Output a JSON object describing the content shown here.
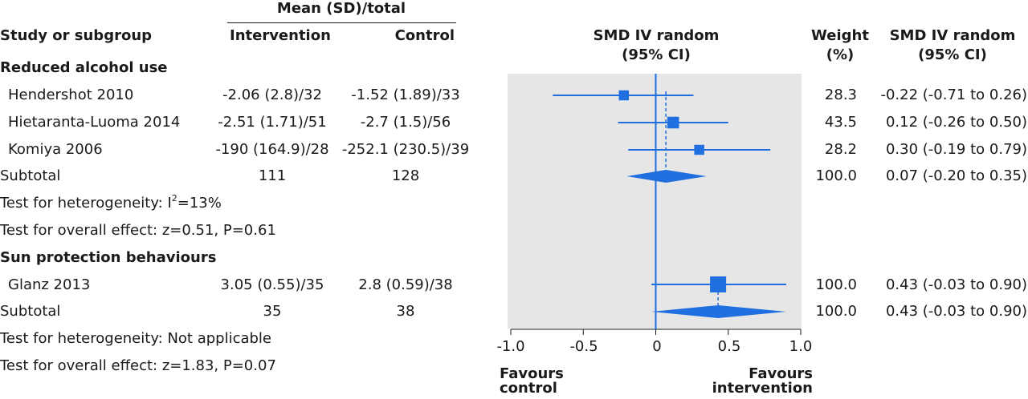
{
  "header": {
    "group_header": "Mean (SD)/total",
    "study_col": "Study or subgroup",
    "intervention_col": "Intervention",
    "control_col": "Control",
    "plot_col_line1": "SMD IV random",
    "plot_col_line2": "(95% CI)",
    "weight_col_line1": "Weight",
    "weight_col_line2": "(%)",
    "smd_col_line1": "SMD IV random",
    "smd_col_line2": "(95% CI)"
  },
  "groups": [
    {
      "title": "Reduced alcohol use",
      "studies": [
        {
          "name": "Hendershot 2010",
          "intervention": "-2.06 (2.8)/32",
          "control": "-1.52 (1.89)/33",
          "weight": "28.3",
          "ci_text": "-0.22 (-0.71 to 0.26)"
        },
        {
          "name": "Hietaranta-Luoma 2014",
          "intervention": "-2.51 (1.71)/51",
          "control": "-2.7 (1.5)/56",
          "weight": "43.5",
          "ci_text": "0.12 (-0.26 to 0.50)"
        },
        {
          "name": "Komiya 2006",
          "intervention": "-190 (164.9)/28",
          "control": "-252.1 (230.5)/39",
          "weight": "28.2",
          "ci_text": "0.30 (-0.19 to 0.79)"
        }
      ],
      "subtotal": {
        "label": "Subtotal",
        "intervention": "111",
        "control": "128",
        "weight": "100.0",
        "ci_text": "0.07 (-0.20 to 0.35)"
      },
      "heterogeneity": {
        "prefix": "Test for heterogeneity: I",
        "sup": "2",
        "suffix": "=13%"
      },
      "overall": "Test for overall effect: z=0.51, P=0.61"
    },
    {
      "title": "Sun protection behaviours",
      "studies": [
        {
          "name": "Glanz 2013",
          "intervention": "3.05 (0.55)/35",
          "control": "2.8 (0.59)/38",
          "weight": "100.0",
          "ci_text": "0.43 (-0.03 to 0.90)"
        }
      ],
      "subtotal": {
        "label": "Subtotal",
        "intervention": "35",
        "control": "38",
        "weight": "100.0",
        "ci_text": "0.43 (-0.03 to 0.90)"
      },
      "heterogeneity": "Test for heterogeneity: Not applicable",
      "overall": "Test for overall effect: z=1.83, P=0.07"
    }
  ],
  "axis": {
    "ticks": [
      "-1.0",
      "-0.5",
      "0",
      "0.5",
      "1.0"
    ],
    "favours_left_line1": "Favours",
    "favours_left_line2": "control",
    "favours_right_line1": "Favours",
    "favours_right_line2": "intervention"
  },
  "chart_data": {
    "type": "forest",
    "xlim": [
      -1.0,
      1.0
    ],
    "x_ticks": [
      -1.0,
      -0.5,
      0,
      0.5,
      1.0
    ],
    "reference_line": 0,
    "grid": false,
    "colors": {
      "marker": "#1f6fe0",
      "panel": "#e6e6e6"
    },
    "studies": [
      {
        "name": "Hendershot 2010",
        "estimate": -0.22,
        "lower": -0.71,
        "upper": 0.26,
        "weight": 28.3,
        "group": "Reduced alcohol use"
      },
      {
        "name": "Hietaranta-Luoma 2014",
        "estimate": 0.12,
        "lower": -0.26,
        "upper": 0.5,
        "weight": 43.5,
        "group": "Reduced alcohol use"
      },
      {
        "name": "Komiya 2006",
        "estimate": 0.3,
        "lower": -0.19,
        "upper": 0.79,
        "weight": 28.2,
        "group": "Reduced alcohol use"
      },
      {
        "name": "Glanz 2013",
        "estimate": 0.43,
        "lower": -0.03,
        "upper": 0.9,
        "weight": 100.0,
        "group": "Sun protection behaviours"
      }
    ],
    "subtotals": [
      {
        "group": "Reduced alcohol use",
        "estimate": 0.07,
        "lower": -0.2,
        "upper": 0.35
      },
      {
        "group": "Sun protection behaviours",
        "estimate": 0.43,
        "lower": -0.03,
        "upper": 0.9
      }
    ]
  }
}
